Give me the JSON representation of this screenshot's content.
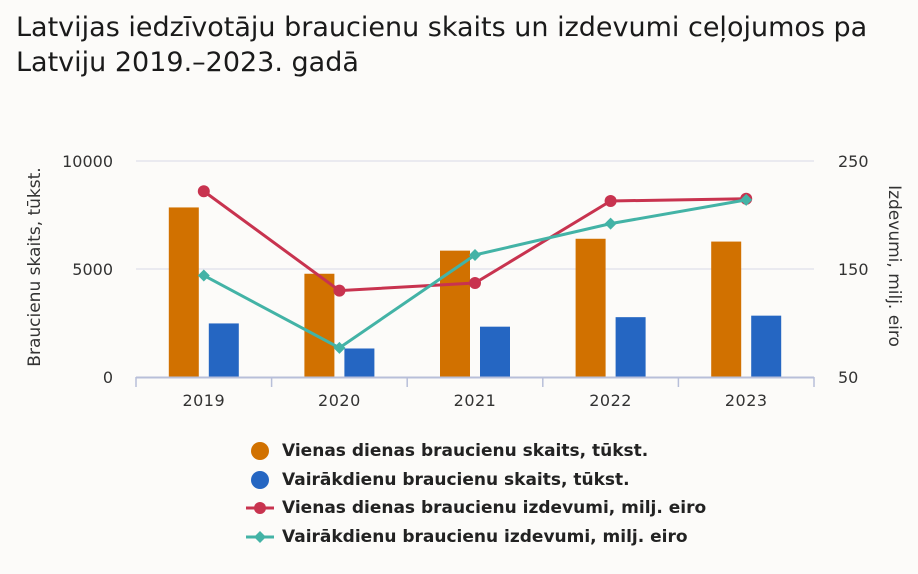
{
  "title": "Latvijas iedzīvotāju braucienu skaits un izdevumi ceļojumos pa Latviju 2019.–2023. gadā",
  "chart_data": {
    "type": "bar",
    "categories": [
      "2019",
      "2020",
      "2021",
      "2022",
      "2023"
    ],
    "ylabel_left": "Braucienu skaits, tūkst.",
    "ylabel_right": "Izdevumi, milj. eiro",
    "ylim_left": [
      0,
      10000
    ],
    "ylim_right": [
      50,
      250
    ],
    "yticks_left": [
      "0",
      "5000",
      "10000"
    ],
    "yticks_right": [
      "50",
      "150",
      "250"
    ],
    "grid": true,
    "legend_position": "bottom",
    "series": [
      {
        "name": "Vienas dienas braucienu skaits, tūkst.",
        "type": "bar",
        "axis": "left",
        "color": "#d17100",
        "marker": "circle",
        "values": [
          7850,
          4780,
          5850,
          6400,
          6270
        ]
      },
      {
        "name": "Vairākdienu braucienu skaits, tūkst.",
        "type": "bar",
        "axis": "left",
        "color": "#2566c2",
        "marker": "circle",
        "values": [
          2480,
          1320,
          2330,
          2770,
          2840
        ]
      },
      {
        "name": "Vienas dienas braucienu izdevumi, milj. eiro",
        "type": "line",
        "axis": "right",
        "color": "#c8334f",
        "marker": "circle",
        "values": [
          222,
          130,
          137,
          213,
          215
        ]
      },
      {
        "name": "Vairākdienu braucienu izdevumi, milj. eiro",
        "type": "line",
        "axis": "right",
        "color": "#43b3a6",
        "marker": "diamond",
        "values": [
          144,
          77,
          163,
          192,
          214
        ]
      }
    ]
  }
}
